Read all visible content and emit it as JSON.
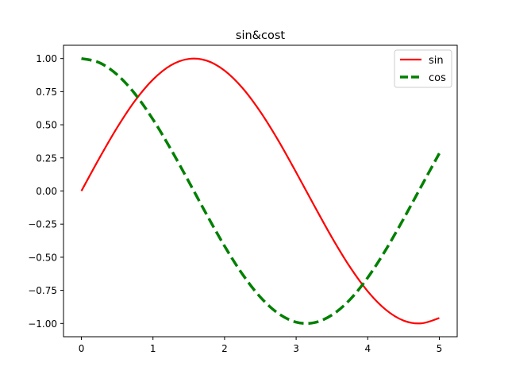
{
  "chart_data": {
    "type": "line",
    "title": "sin&cost",
    "xlabel": "",
    "ylabel": "",
    "xlim": [
      -0.25,
      5.25
    ],
    "ylim": [
      -1.1,
      1.1
    ],
    "grid": false,
    "legend_position": "top-right",
    "x_ticks": [
      0,
      1,
      2,
      3,
      4,
      5
    ],
    "x_tick_labels": [
      "0",
      "1",
      "2",
      "3",
      "4",
      "5"
    ],
    "y_ticks": [
      1.0,
      0.75,
      0.5,
      0.25,
      0.0,
      -0.25,
      -0.5,
      -0.75,
      -1.0
    ],
    "y_tick_labels": [
      "1.00",
      "0.75",
      "0.50",
      "0.25",
      "0.00",
      "−0.25",
      "−0.50",
      "−0.75",
      "−1.00"
    ],
    "series": [
      {
        "name": "sin",
        "color": "#ff0000",
        "style": "solid",
        "x": [
          0,
          0.25,
          0.5,
          0.75,
          1.0,
          1.25,
          1.5,
          1.75,
          2.0,
          2.25,
          2.5,
          2.75,
          3.0,
          3.25,
          3.5,
          3.75,
          4.0,
          4.25,
          4.5,
          4.75,
          5.0
        ],
        "values": [
          0.0,
          0.247,
          0.479,
          0.682,
          0.841,
          0.949,
          0.997,
          0.984,
          0.909,
          0.778,
          0.598,
          0.382,
          0.141,
          -0.108,
          -0.351,
          -0.572,
          -0.757,
          -0.895,
          -0.978,
          -0.999,
          -0.959
        ]
      },
      {
        "name": "cos",
        "color": "#008000",
        "style": "dashed",
        "x": [
          0,
          0.25,
          0.5,
          0.75,
          1.0,
          1.25,
          1.5,
          1.75,
          2.0,
          2.25,
          2.5,
          2.75,
          3.0,
          3.25,
          3.5,
          3.75,
          4.0,
          4.25,
          4.5,
          4.75,
          5.0
        ],
        "values": [
          1.0,
          0.969,
          0.878,
          0.732,
          0.54,
          0.315,
          0.071,
          -0.178,
          -0.416,
          -0.628,
          -0.801,
          -0.924,
          -0.99,
          -0.994,
          -0.936,
          -0.821,
          -0.654,
          -0.446,
          -0.211,
          0.037,
          0.284
        ]
      }
    ]
  }
}
